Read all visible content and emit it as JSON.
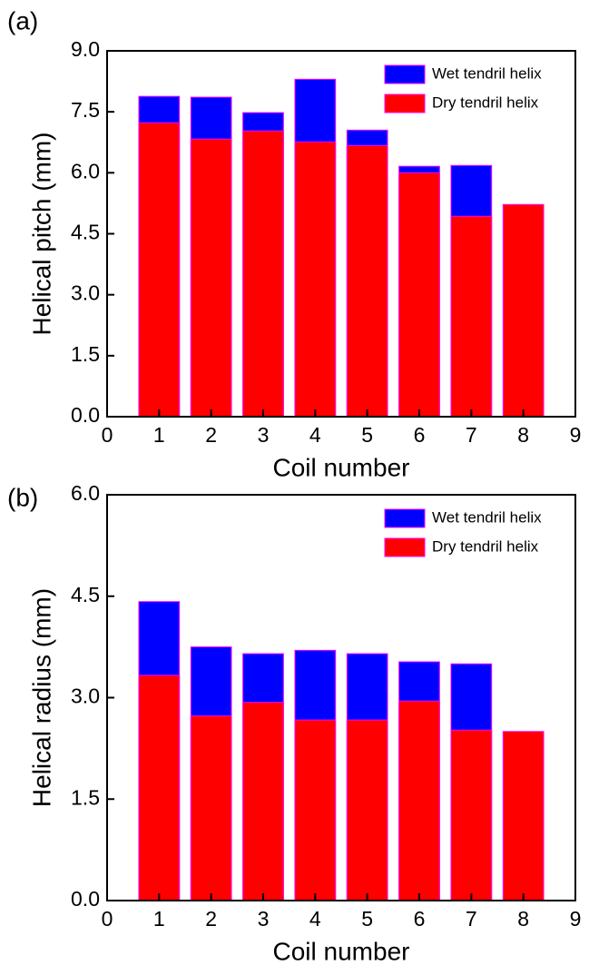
{
  "chart_data": [
    {
      "type": "bar",
      "label": "(a)",
      "xlabel": "Coil number",
      "ylabel": "Helical pitch (mm)",
      "x": [
        1,
        2,
        3,
        4,
        5,
        6,
        7,
        8
      ],
      "xlim": [
        0,
        9
      ],
      "xticks": [
        0,
        1,
        2,
        3,
        4,
        5,
        6,
        7,
        8,
        9
      ],
      "ylim": [
        0,
        9
      ],
      "yticks": [
        {
          "value": 0,
          "label": "0.0"
        },
        1.5,
        {
          "value": 3,
          "label": "3.0"
        },
        4.5,
        {
          "value": 6,
          "label": "6.0"
        },
        7.5,
        {
          "value": 9,
          "label": "9.0"
        }
      ],
      "legend": "upper right",
      "series": [
        {
          "name": "Wet tendril helix",
          "color": "#0000ff",
          "values": [
            7.88,
            7.86,
            7.48,
            8.3,
            7.05,
            6.16,
            6.18,
            null
          ]
        },
        {
          "name": "Dry tendril helix",
          "color": "#ff0000",
          "values": [
            7.23,
            6.83,
            7.03,
            6.76,
            6.67,
            6.0,
            4.93,
            5.22
          ]
        }
      ]
    },
    {
      "type": "bar",
      "label": "(b)",
      "xlabel": "Coil number",
      "ylabel": "Helical radius (mm)",
      "x": [
        1,
        2,
        3,
        4,
        5,
        6,
        7,
        8
      ],
      "xlim": [
        0,
        9
      ],
      "xticks": [
        0,
        1,
        2,
        3,
        4,
        5,
        6,
        7,
        8,
        9
      ],
      "ylim": [
        0,
        6
      ],
      "yticks": [
        {
          "value": 0,
          "label": "0.0"
        },
        1.5,
        {
          "value": 3,
          "label": "3.0"
        },
        4.5,
        {
          "value": 6,
          "label": "6.0"
        }
      ],
      "legend": "upper right",
      "series": [
        {
          "name": "Wet tendril helix",
          "color": "#0000ff",
          "values": [
            4.42,
            3.75,
            3.65,
            3.7,
            3.65,
            3.53,
            3.5,
            null
          ]
        },
        {
          "name": "Dry tendril helix",
          "color": "#ff0000",
          "values": [
            3.33,
            2.73,
            2.93,
            2.67,
            2.67,
            2.95,
            2.52,
            2.5
          ]
        }
      ]
    }
  ]
}
